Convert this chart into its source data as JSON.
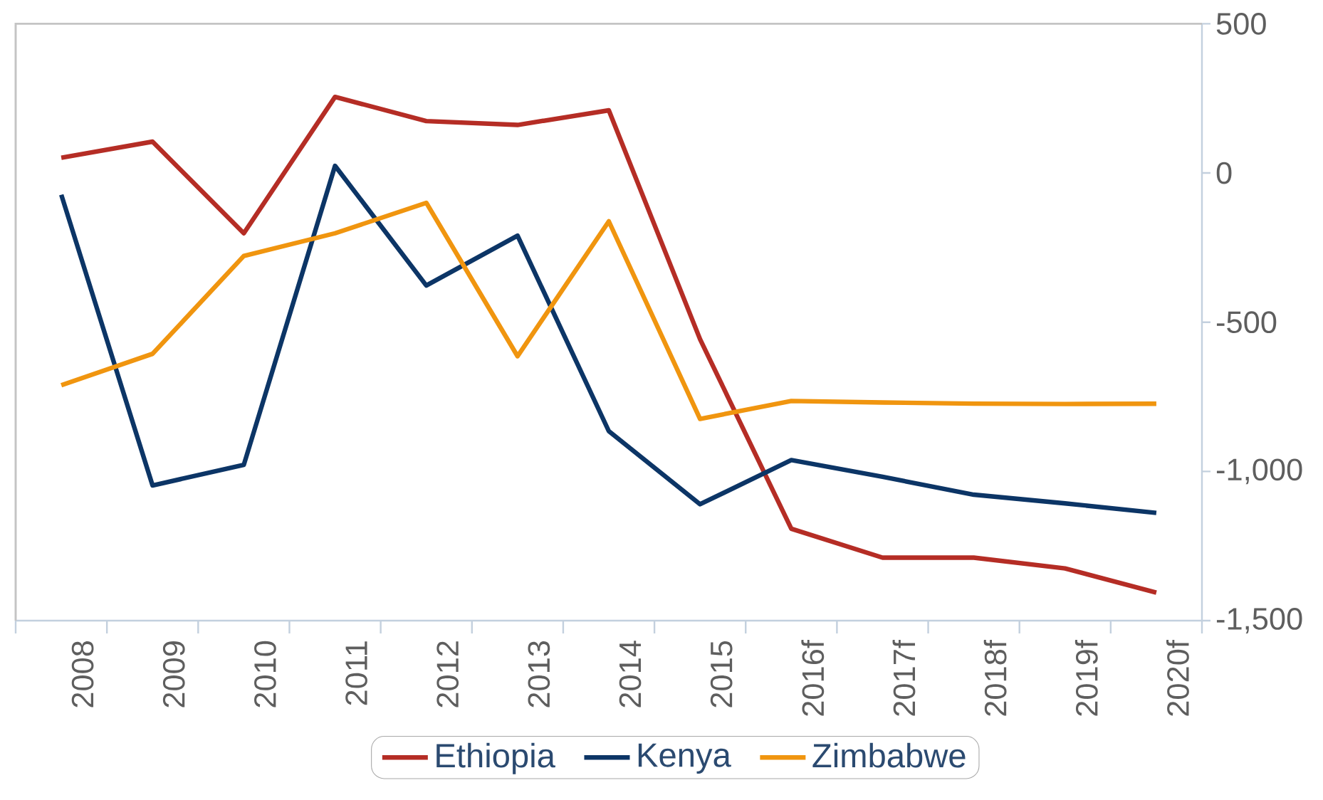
{
  "chart_data": {
    "type": "line",
    "categories": [
      "2008",
      "2009",
      "2010",
      "2011",
      "2012",
      "2013",
      "2014",
      "2015",
      "2016f",
      "2017f",
      "2018f",
      "2019f",
      "2020f"
    ],
    "series": [
      {
        "name": "Ethiopia",
        "color": "#b52d25",
        "values": [
          51,
          105,
          -202,
          255,
          174,
          161,
          210,
          -557,
          -1192,
          -1289,
          -1289,
          -1325,
          -1406
        ]
      },
      {
        "name": "Kenya",
        "color": "#0c3566",
        "values": [
          -73,
          -1047,
          -978,
          24,
          -377,
          -210,
          -865,
          -1110,
          -962,
          -1018,
          -1078,
          -1107,
          -1139
        ]
      },
      {
        "name": "Zimbabwe",
        "color": "#f0950f",
        "values": [
          -711,
          -606,
          -278,
          -202,
          -100,
          -614,
          -162,
          -824,
          -764,
          -769,
          -773,
          -774,
          -773
        ]
      }
    ],
    "ylim": [
      -1500,
      500
    ],
    "yticks": [
      500,
      0,
      -500,
      {
        "value": -1000,
        "label": "-1,000"
      },
      {
        "value": -1500,
        "label": "-1,500"
      }
    ],
    "legend": "bottom",
    "marker": "none",
    "line_style": "solid"
  }
}
